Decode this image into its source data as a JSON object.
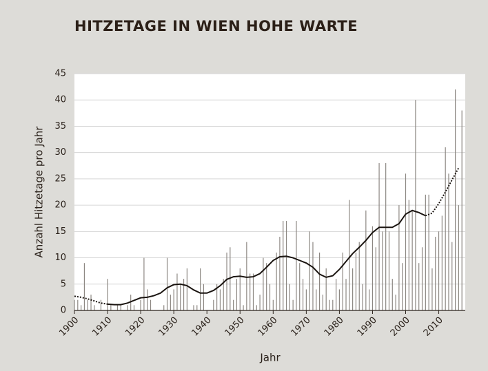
{
  "chart_data": {
    "type": "bar",
    "title": "HITZETAGE IN WIEN HOHE WARTE",
    "xlabel": "Jahr",
    "ylabel": "Anzahl Hitzetage pro Jahr",
    "x": [
      1900,
      1901,
      1902,
      1903,
      1904,
      1905,
      1906,
      1907,
      1908,
      1909,
      1910,
      1911,
      1912,
      1913,
      1914,
      1915,
      1916,
      1917,
      1918,
      1919,
      1920,
      1921,
      1922,
      1923,
      1924,
      1925,
      1926,
      1927,
      1928,
      1929,
      1930,
      1931,
      1932,
      1933,
      1934,
      1935,
      1936,
      1937,
      1938,
      1939,
      1940,
      1941,
      1942,
      1943,
      1944,
      1945,
      1946,
      1947,
      1948,
      1949,
      1950,
      1951,
      1952,
      1953,
      1954,
      1955,
      1956,
      1957,
      1958,
      1959,
      1960,
      1961,
      1962,
      1963,
      1964,
      1965,
      1966,
      1967,
      1968,
      1969,
      1970,
      1971,
      1972,
      1973,
      1974,
      1975,
      1976,
      1977,
      1978,
      1979,
      1980,
      1981,
      1982,
      1983,
      1984,
      1985,
      1986,
      1987,
      1988,
      1989,
      1990,
      1991,
      1992,
      1993,
      1994,
      1995,
      1996,
      1997,
      1998,
      1999,
      2000,
      2001,
      2002,
      2003,
      2004,
      2005,
      2006,
      2007,
      2008,
      2009,
      2010,
      2011,
      2012,
      2013,
      2014,
      2015,
      2016,
      2017
    ],
    "values": [
      2,
      2,
      1,
      9,
      2,
      3,
      1,
      0,
      2,
      0,
      6,
      1,
      0,
      1,
      1,
      0,
      1,
      3,
      1,
      0,
      2,
      10,
      4,
      2,
      0,
      0,
      0,
      1,
      10,
      3,
      4,
      7,
      5,
      6,
      8,
      0,
      1,
      1,
      8,
      5,
      0,
      0,
      2,
      5,
      4,
      6,
      11,
      12,
      2,
      6,
      8,
      1,
      13,
      7,
      7,
      1,
      3,
      10,
      9,
      5,
      2,
      11,
      14,
      17,
      17,
      5,
      2,
      17,
      9,
      6,
      4,
      15,
      13,
      4,
      11,
      3,
      8,
      2,
      2,
      6,
      4,
      11,
      6,
      21,
      8,
      11,
      13,
      5,
      19,
      4,
      16,
      12,
      28,
      15,
      28,
      15,
      6,
      3,
      20,
      9,
      26,
      21,
      19,
      40,
      9,
      12,
      22,
      22,
      8,
      14,
      15,
      18,
      31,
      26,
      13,
      42,
      20,
      38
    ],
    "color": "#8c8782",
    "lines": [
      {
        "style": "dotted",
        "color": "#1a1410",
        "x": [
          1900,
          1902,
          1904,
          1906,
          1908,
          1910
        ],
        "values": [
          2.7,
          2.5,
          2.2,
          1.8,
          1.4,
          1.2
        ]
      },
      {
        "style": "solid",
        "color": "#1a1410",
        "x": [
          1910,
          1912,
          1914,
          1916,
          1918,
          1920,
          1922,
          1924,
          1926,
          1928,
          1930,
          1932,
          1934,
          1936,
          1938,
          1940,
          1942,
          1944,
          1946,
          1948,
          1950,
          1952,
          1954,
          1956,
          1958,
          1960,
          1962,
          1964,
          1966,
          1968,
          1970,
          1972,
          1974,
          1976,
          1978,
          1980,
          1982,
          1984,
          1986,
          1988,
          1990,
          1992,
          1994,
          1996,
          1998,
          2000,
          2002,
          2004,
          2006
        ],
        "values": [
          1.2,
          1.1,
          1.1,
          1.4,
          1.9,
          2.4,
          2.5,
          2.8,
          3.3,
          4.3,
          4.9,
          5.0,
          4.7,
          3.9,
          3.3,
          3.3,
          3.8,
          4.7,
          5.9,
          6.4,
          6.5,
          6.3,
          6.4,
          7.0,
          8.2,
          9.5,
          10.2,
          10.3,
          10.0,
          9.5,
          9.0,
          8.2,
          6.9,
          6.3,
          6.6,
          7.8,
          9.3,
          10.8,
          12.0,
          13.3,
          14.8,
          15.8,
          15.8,
          15.8,
          16.5,
          18.3,
          19.0,
          18.6,
          18.0
        ]
      },
      {
        "style": "dotted",
        "color": "#1a1410",
        "x": [
          2006,
          2008,
          2010,
          2012,
          2014,
          2016
        ],
        "values": [
          18.0,
          18.5,
          20.3,
          22.5,
          24.8,
          27.1
        ]
      }
    ],
    "xlim": [
      1900,
      2018
    ],
    "xticks": [
      1900,
      1910,
      1920,
      1930,
      1940,
      1950,
      1960,
      1970,
      1980,
      1990,
      2000,
      2010
    ],
    "ylim": [
      0,
      45
    ],
    "yticks": [
      0,
      5,
      10,
      15,
      20,
      25,
      30,
      35,
      40,
      45
    ],
    "grid": true
  }
}
